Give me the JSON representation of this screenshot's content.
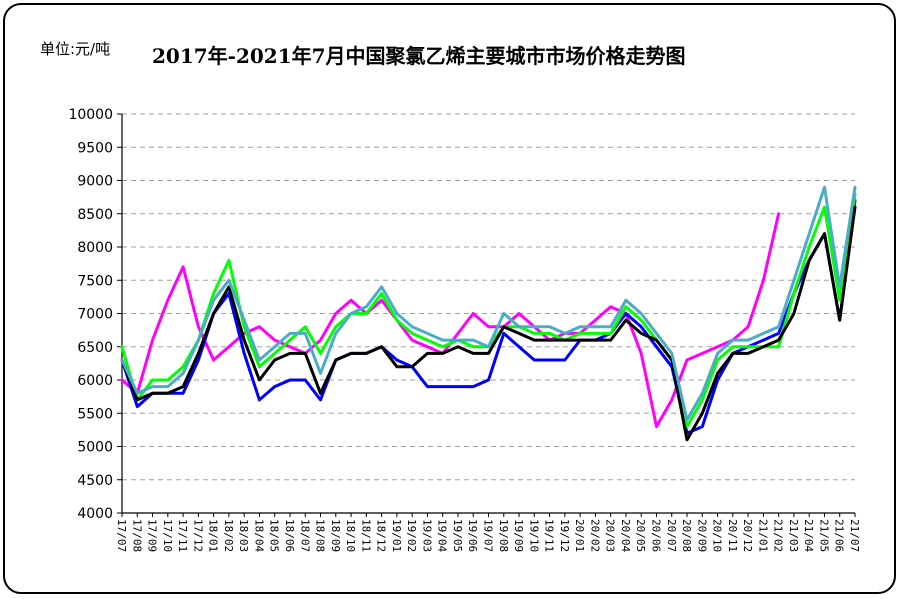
{
  "chart_data": {
    "type": "line",
    "title": "2017年-2021年7月中国聚氯乙烯主要城市市场价格走势图",
    "unit_label": "单位:元/吨",
    "ylim": [
      4000,
      10000
    ],
    "yticks": [
      4000,
      4500,
      5000,
      5500,
      6000,
      6500,
      7000,
      7500,
      8000,
      8500,
      9000,
      9500,
      10000
    ],
    "grid": true,
    "x_start": "17/07",
    "x_end": "21/07",
    "x": [
      "17/07",
      "17/08",
      "17/09",
      "17/10",
      "17/11",
      "17/12",
      "18/01",
      "18/02",
      "18/03",
      "18/04",
      "18/05",
      "18/06",
      "18/07",
      "18/08",
      "18/09",
      "18/10",
      "18/11",
      "18/12",
      "19/01",
      "19/02",
      "19/03",
      "19/04",
      "19/05",
      "19/06",
      "19/07",
      "19/08",
      "19/09",
      "19/10",
      "19/11",
      "19/12",
      "20/01",
      "20/02",
      "20/03",
      "20/04",
      "20/05",
      "20/06",
      "20/07",
      "20/08",
      "20/09",
      "20/10",
      "20/11",
      "20/12",
      "21/01",
      "21/02",
      "21/03",
      "21/04",
      "21/05",
      "21/06",
      "21/07"
    ],
    "series": [
      {
        "color": "#ff00ff",
        "values": [
          6000,
          5800,
          6600,
          7200,
          7700,
          6800,
          6300,
          6500,
          6700,
          6800,
          6600,
          6500,
          6400,
          6600,
          7000,
          7200,
          7000,
          7200,
          6900,
          6600,
          6500,
          6400,
          6700,
          7000,
          6800,
          6800,
          7000,
          6800,
          6600,
          6700,
          6700,
          6900,
          7100,
          7000,
          6400,
          5300,
          5700,
          6300,
          6400,
          6500,
          6600,
          6800,
          7500,
          8500,
          null,
          null,
          null,
          null,
          null
        ]
      },
      {
        "color": "#0000ff",
        "values": [
          6300,
          5600,
          5800,
          5800,
          5800,
          6300,
          7000,
          7300,
          6400,
          5700,
          5900,
          6000,
          6000,
          5700,
          6300,
          6400,
          6400,
          6500,
          6300,
          6200,
          5900,
          5900,
          5900,
          5900,
          6000,
          6700,
          6500,
          6300,
          6300,
          6300,
          6600,
          6600,
          6700,
          7000,
          6800,
          6500,
          6200,
          5200,
          5300,
          6000,
          6400,
          6500,
          6600,
          6700,
          7300,
          7800,
          8200,
          6900,
          8700
        ]
      },
      {
        "color": "#00ff00",
        "values": [
          6500,
          5700,
          6000,
          6000,
          6200,
          6600,
          7300,
          7800,
          6800,
          6200,
          6400,
          6600,
          6800,
          6400,
          6800,
          7000,
          7000,
          7300,
          6900,
          6700,
          6600,
          6500,
          6600,
          6500,
          6500,
          6800,
          6800,
          6700,
          6700,
          6600,
          6700,
          6700,
          6700,
          7100,
          6900,
          6600,
          6300,
          5300,
          5700,
          6300,
          6500,
          6500,
          6500,
          6500,
          7300,
          8000,
          8600,
          7200,
          8800
        ]
      },
      {
        "color": "#000000",
        "values": [
          6300,
          5700,
          5800,
          5800,
          5900,
          6400,
          7000,
          7400,
          6600,
          6000,
          6300,
          6400,
          6400,
          5800,
          6300,
          6400,
          6400,
          6500,
          6200,
          6200,
          6400,
          6400,
          6500,
          6400,
          6400,
          6800,
          6700,
          6600,
          6600,
          6600,
          6600,
          6600,
          6600,
          6900,
          6700,
          6600,
          6300,
          5100,
          5500,
          6100,
          6400,
          6400,
          6500,
          6600,
          7000,
          7800,
          8200,
          6900,
          8600
        ]
      },
      {
        "color": "#4bacc6",
        "values": [
          6300,
          5800,
          5900,
          5900,
          6100,
          6600,
          7200,
          7500,
          6900,
          6300,
          6500,
          6700,
          6700,
          6100,
          6700,
          7000,
          7100,
          7400,
          7000,
          6800,
          6700,
          6600,
          6600,
          6600,
          6500,
          7000,
          6800,
          6800,
          6800,
          6700,
          6800,
          6800,
          6800,
          7200,
          7000,
          6700,
          6400,
          5400,
          5800,
          6400,
          6600,
          6600,
          6700,
          6800,
          7500,
          8200,
          8900,
          7400,
          8900
        ]
      }
    ]
  }
}
